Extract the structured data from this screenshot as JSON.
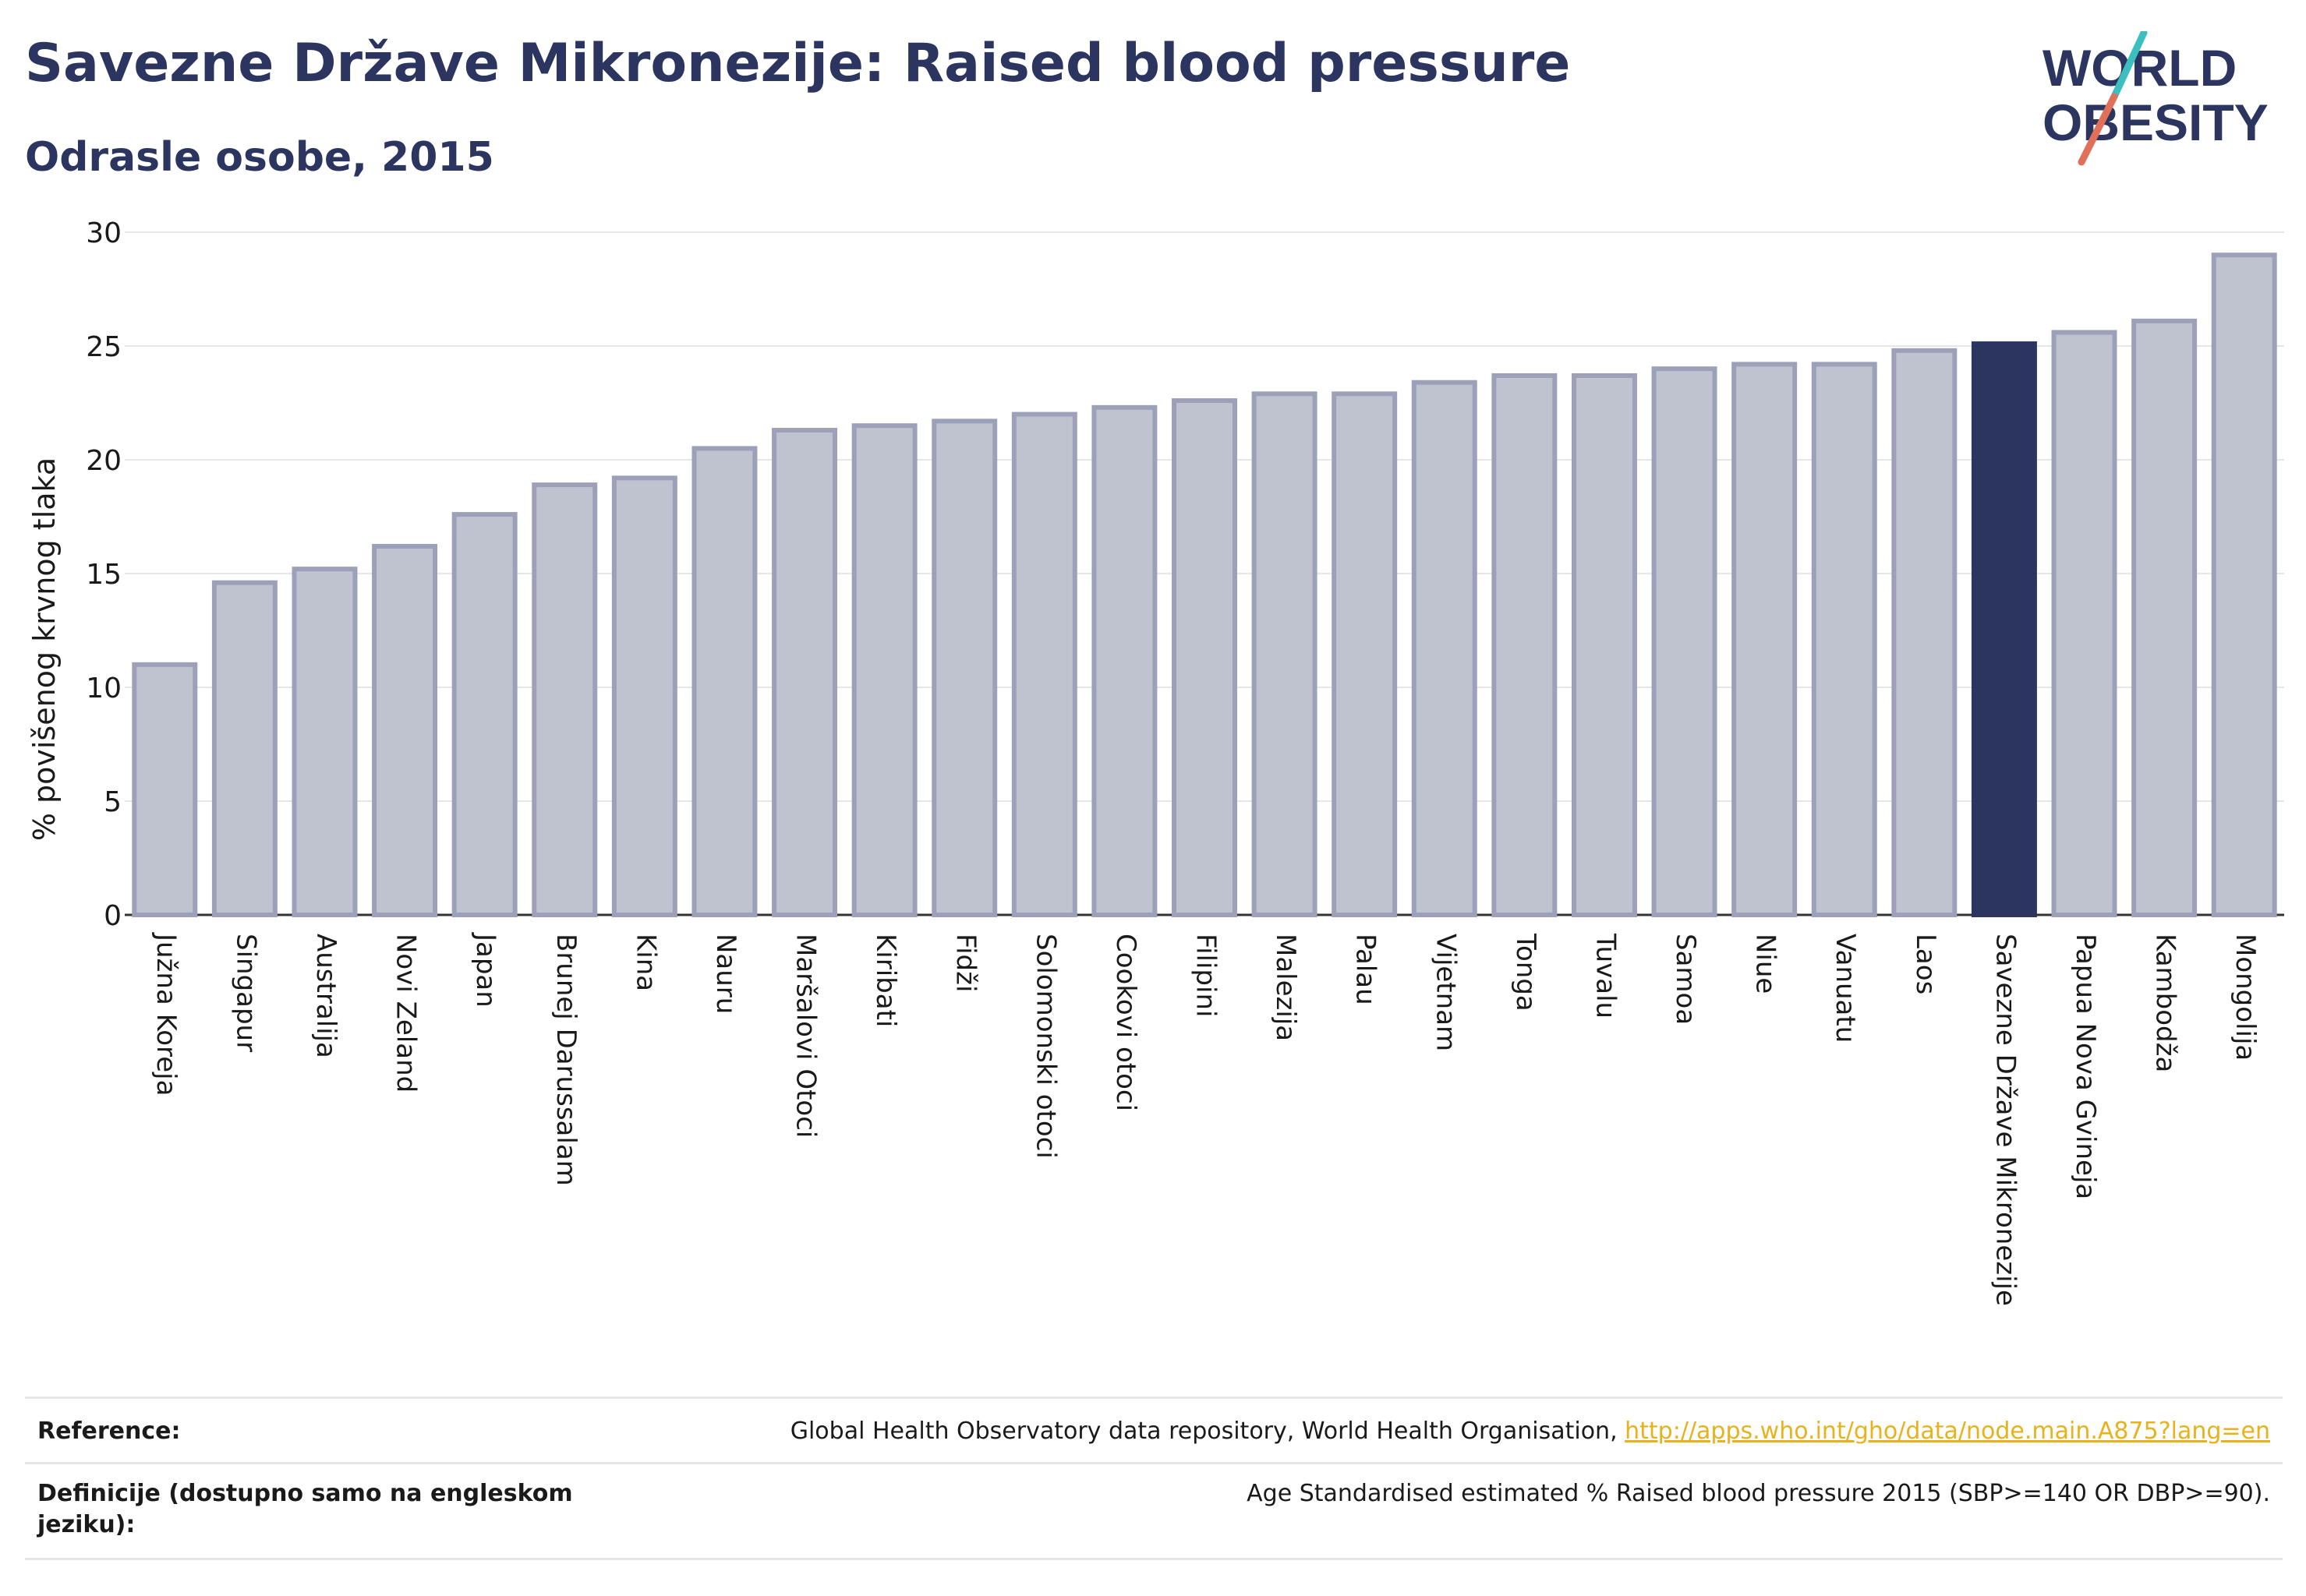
{
  "title": "Savezne Države Mikronezije: Raised blood pressure",
  "subtitle": "Odrasle osobe, 2015",
  "logo": {
    "line1": "WORLD",
    "line2": "OBESITY"
  },
  "colors": {
    "highlight": "#2b3560",
    "bar": "#bfc3d0",
    "bar_stroke": "#9ca1b9",
    "text": "#2b3560"
  },
  "chart_data": {
    "type": "bar",
    "ylabel": "% povišenog krvnog tlaka",
    "ylim": [
      0,
      30
    ],
    "yticks": [
      0,
      5,
      10,
      15,
      20,
      25,
      30
    ],
    "grid": true,
    "highlight": "Savezne Države Mikronezije",
    "categories": [
      "Južna Koreja",
      "Singapur",
      "Australija",
      "Novi Zeland",
      "Japan",
      "Brunej Darussalam",
      "Kina",
      "Nauru",
      "Maršalovi Otoci",
      "Kiribati",
      "Fidži",
      "Solomonski otoci",
      "Cookovi otoci",
      "Filipini",
      "Malezija",
      "Palau",
      "Vijetnam",
      "Tonga",
      "Tuvalu",
      "Samoa",
      "Niue",
      "Vanuatu",
      "Laos",
      "Savezne Države Mikronezije",
      "Papua Nova Gvineja",
      "Kambodža",
      "Mongolija"
    ],
    "values": [
      11.0,
      14.6,
      15.2,
      16.2,
      17.6,
      18.9,
      19.2,
      20.5,
      21.3,
      21.5,
      21.7,
      22.0,
      22.3,
      22.6,
      22.9,
      22.9,
      23.4,
      23.7,
      23.7,
      24.0,
      24.2,
      24.2,
      24.8,
      25.1,
      25.6,
      26.1,
      29.0
    ]
  },
  "reference": {
    "label": "Reference:",
    "text": "Global Health Observatory data repository, World Health Organisation, ",
    "link": "http://apps.who.int/gho/data/node.main.A875?lang=en"
  },
  "definition": {
    "label": "Definicije (dostupno samo na engleskom jeziku):",
    "text": "Age Standardised estimated % Raised blood pressure 2015 (SBP>=140 OR DBP>=90)."
  }
}
